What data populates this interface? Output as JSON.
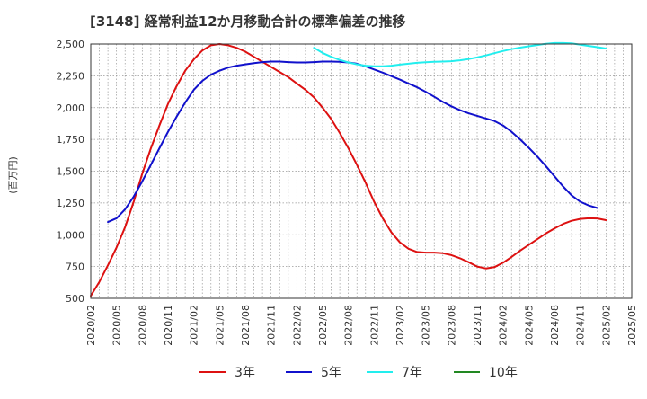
{
  "chart_data": {
    "type": "line",
    "title": "[3148]  経常利益12か月移動合計の標準偏差の推移",
    "ylabel": "(百万円)",
    "xlabel": "",
    "ylim": [
      500,
      2500
    ],
    "y_ticks": [
      500,
      750,
      1000,
      1250,
      1500,
      1750,
      2000,
      2250,
      2500
    ],
    "y_tick_labels": [
      "500",
      "750",
      "1,000",
      "1,250",
      "1,500",
      "1,750",
      "2,000",
      "2,250",
      "2,500"
    ],
    "x_tick_labels": [
      "2020/02",
      "2020/05",
      "2020/08",
      "2020/11",
      "2021/02",
      "2021/05",
      "2021/08",
      "2021/11",
      "2022/02",
      "2022/05",
      "2022/08",
      "2022/11",
      "2023/02",
      "2023/05",
      "2023/08",
      "2023/11",
      "2024/02",
      "2024/05",
      "2024/08",
      "2024/11",
      "2025/02",
      "2025/05"
    ],
    "x_range": [
      "2020/02",
      "2025/05"
    ],
    "grid": true,
    "legend_position": "bottom",
    "series": [
      {
        "name": "3年",
        "color": "#dd1111",
        "points": [
          [
            "2020/02",
            520
          ],
          [
            "2020/03",
            630
          ],
          [
            "2020/04",
            760
          ],
          [
            "2020/05",
            900
          ],
          [
            "2020/06",
            1060
          ],
          [
            "2020/07",
            1260
          ],
          [
            "2020/08",
            1480
          ],
          [
            "2020/09",
            1680
          ],
          [
            "2020/10",
            1860
          ],
          [
            "2020/11",
            2030
          ],
          [
            "2020/12",
            2170
          ],
          [
            "2021/01",
            2290
          ],
          [
            "2021/02",
            2380
          ],
          [
            "2021/03",
            2450
          ],
          [
            "2021/04",
            2490
          ],
          [
            "2021/05",
            2500
          ],
          [
            "2021/06",
            2490
          ],
          [
            "2021/07",
            2470
          ],
          [
            "2021/08",
            2440
          ],
          [
            "2021/09",
            2400
          ],
          [
            "2021/10",
            2360
          ],
          [
            "2021/11",
            2320
          ],
          [
            "2021/12",
            2280
          ],
          [
            "2022/01",
            2240
          ],
          [
            "2022/02",
            2190
          ],
          [
            "2022/03",
            2140
          ],
          [
            "2022/04",
            2080
          ],
          [
            "2022/05",
            2000
          ],
          [
            "2022/06",
            1910
          ],
          [
            "2022/07",
            1800
          ],
          [
            "2022/08",
            1680
          ],
          [
            "2022/09",
            1550
          ],
          [
            "2022/10",
            1410
          ],
          [
            "2022/11",
            1260
          ],
          [
            "2022/12",
            1130
          ],
          [
            "2023/01",
            1020
          ],
          [
            "2023/02",
            940
          ],
          [
            "2023/03",
            890
          ],
          [
            "2023/04",
            865
          ],
          [
            "2023/05",
            860
          ],
          [
            "2023/06",
            860
          ],
          [
            "2023/07",
            855
          ],
          [
            "2023/08",
            840
          ],
          [
            "2023/09",
            815
          ],
          [
            "2023/10",
            785
          ],
          [
            "2023/11",
            750
          ],
          [
            "2023/12",
            735
          ],
          [
            "2024/01",
            745
          ],
          [
            "2024/02",
            780
          ],
          [
            "2024/03",
            825
          ],
          [
            "2024/04",
            875
          ],
          [
            "2024/05",
            920
          ],
          [
            "2024/06",
            965
          ],
          [
            "2024/07",
            1010
          ],
          [
            "2024/08",
            1050
          ],
          [
            "2024/09",
            1085
          ],
          [
            "2024/10",
            1110
          ],
          [
            "2024/11",
            1125
          ],
          [
            "2024/12",
            1130
          ],
          [
            "2025/01",
            1128
          ],
          [
            "2025/02",
            1115
          ]
        ]
      },
      {
        "name": "5年",
        "color": "#1111cc",
        "points": [
          [
            "2020/04",
            1100
          ],
          [
            "2020/05",
            1130
          ],
          [
            "2020/06",
            1200
          ],
          [
            "2020/07",
            1300
          ],
          [
            "2020/08",
            1420
          ],
          [
            "2020/09",
            1550
          ],
          [
            "2020/10",
            1680
          ],
          [
            "2020/11",
            1810
          ],
          [
            "2020/12",
            1930
          ],
          [
            "2021/01",
            2040
          ],
          [
            "2021/02",
            2140
          ],
          [
            "2021/03",
            2210
          ],
          [
            "2021/04",
            2260
          ],
          [
            "2021/05",
            2290
          ],
          [
            "2021/06",
            2315
          ],
          [
            "2021/07",
            2330
          ],
          [
            "2021/08",
            2340
          ],
          [
            "2021/09",
            2350
          ],
          [
            "2021/10",
            2358
          ],
          [
            "2021/11",
            2362
          ],
          [
            "2021/12",
            2362
          ],
          [
            "2022/01",
            2358
          ],
          [
            "2022/02",
            2355
          ],
          [
            "2022/03",
            2355
          ],
          [
            "2022/04",
            2358
          ],
          [
            "2022/05",
            2362
          ],
          [
            "2022/06",
            2362
          ],
          [
            "2022/07",
            2360
          ],
          [
            "2022/08",
            2355
          ],
          [
            "2022/09",
            2345
          ],
          [
            "2022/10",
            2325
          ],
          [
            "2022/11",
            2300
          ],
          [
            "2022/12",
            2275
          ],
          [
            "2023/01",
            2248
          ],
          [
            "2023/02",
            2220
          ],
          [
            "2023/03",
            2190
          ],
          [
            "2023/04",
            2160
          ],
          [
            "2023/05",
            2125
          ],
          [
            "2023/06",
            2085
          ],
          [
            "2023/07",
            2045
          ],
          [
            "2023/08",
            2010
          ],
          [
            "2023/09",
            1980
          ],
          [
            "2023/10",
            1955
          ],
          [
            "2023/11",
            1935
          ],
          [
            "2023/12",
            1915
          ],
          [
            "2024/01",
            1895
          ],
          [
            "2024/02",
            1860
          ],
          [
            "2024/03",
            1810
          ],
          [
            "2024/04",
            1750
          ],
          [
            "2024/05",
            1685
          ],
          [
            "2024/06",
            1615
          ],
          [
            "2024/07",
            1540
          ],
          [
            "2024/08",
            1460
          ],
          [
            "2024/09",
            1380
          ],
          [
            "2024/10",
            1310
          ],
          [
            "2024/11",
            1260
          ],
          [
            "2024/12",
            1230
          ],
          [
            "2025/01",
            1210
          ]
        ]
      },
      {
        "name": "7年",
        "color": "#22eeee",
        "points": [
          [
            "2022/04",
            2470
          ],
          [
            "2022/05",
            2430
          ],
          [
            "2022/06",
            2400
          ],
          [
            "2022/07",
            2375
          ],
          [
            "2022/08",
            2355
          ],
          [
            "2022/09",
            2340
          ],
          [
            "2022/10",
            2330
          ],
          [
            "2022/11",
            2325
          ],
          [
            "2022/12",
            2325
          ],
          [
            "2023/01",
            2330
          ],
          [
            "2023/02",
            2338
          ],
          [
            "2023/03",
            2345
          ],
          [
            "2023/04",
            2352
          ],
          [
            "2023/05",
            2357
          ],
          [
            "2023/06",
            2360
          ],
          [
            "2023/07",
            2362
          ],
          [
            "2023/08",
            2365
          ],
          [
            "2023/09",
            2372
          ],
          [
            "2023/10",
            2382
          ],
          [
            "2023/11",
            2395
          ],
          [
            "2023/12",
            2410
          ],
          [
            "2024/01",
            2428
          ],
          [
            "2024/02",
            2445
          ],
          [
            "2024/03",
            2460
          ],
          [
            "2024/04",
            2472
          ],
          [
            "2024/05",
            2482
          ],
          [
            "2024/06",
            2492
          ],
          [
            "2024/07",
            2502
          ],
          [
            "2024/08",
            2508
          ],
          [
            "2024/09",
            2508
          ],
          [
            "2024/10",
            2505
          ],
          [
            "2024/11",
            2495
          ],
          [
            "2024/12",
            2485
          ],
          [
            "2025/01",
            2475
          ],
          [
            "2025/02",
            2465
          ]
        ]
      },
      {
        "name": "10年",
        "color": "#228822",
        "points": []
      }
    ]
  }
}
